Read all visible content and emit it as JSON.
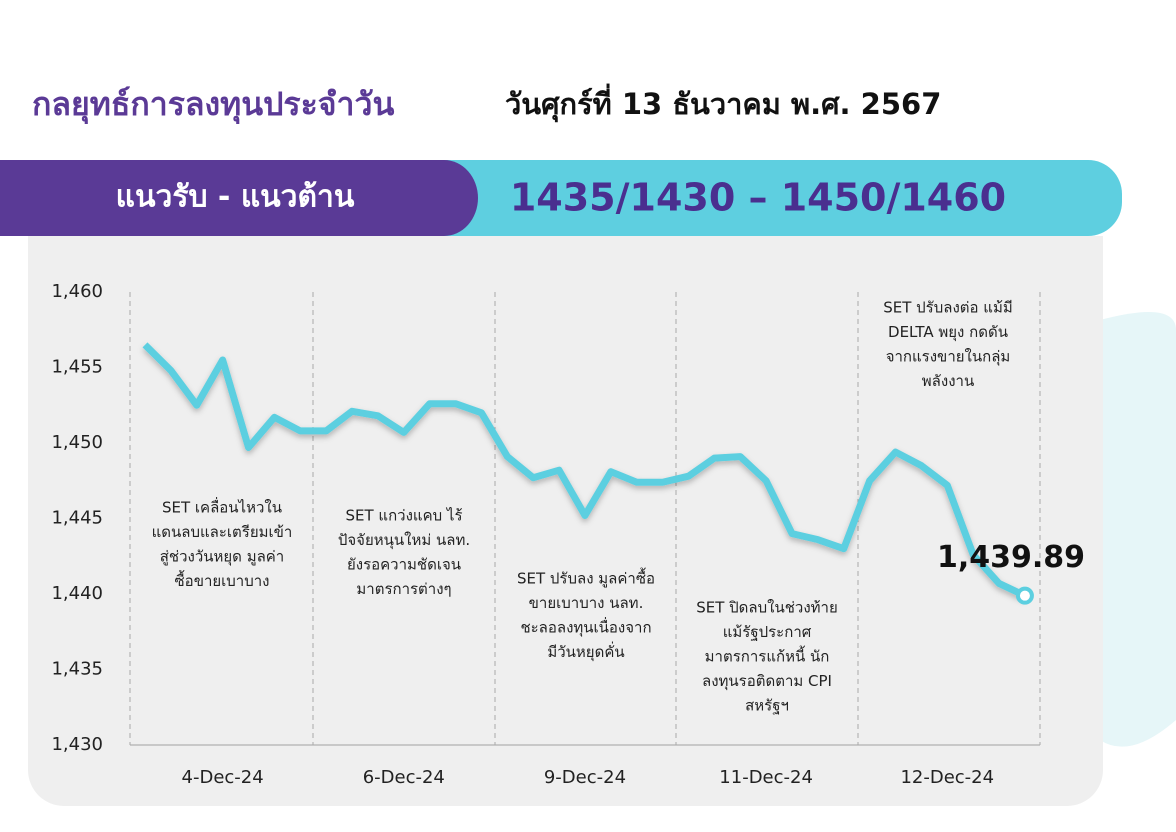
{
  "header": {
    "title": "กลยุทธ์การลงทุนประจำวัน",
    "date": "วันศุกร์ที่ 13 ธันวาคม พ.ศ. 2567",
    "banner_label": "แนวรับ - แนวต้าน",
    "banner_value": "1435/1430 – 1450/1460"
  },
  "chart_data": {
    "type": "line",
    "categories": [
      null,
      null,
      null,
      "4-Dec-24",
      null,
      null,
      null,
      null,
      null,
      null,
      "6-Dec-24",
      null,
      null,
      null,
      null,
      null,
      null,
      "9-Dec-24",
      null,
      null,
      null,
      null,
      null,
      null,
      "11-Dec-24",
      null,
      null,
      null,
      null,
      null,
      null,
      "12-Dec-24",
      null,
      null,
      null
    ],
    "series": [
      {
        "name": "SET",
        "color": "#5ccfe0",
        "values": [
          1456.5,
          1454.8,
          1452.5,
          1455.5,
          1449.7,
          1451.7,
          1450.8,
          1450.8,
          1452.1,
          1451.8,
          1450.7,
          1452.6,
          1452.6,
          1452.0,
          1449.1,
          1447.7,
          1448.2,
          1445.2,
          1448.1,
          1447.4,
          1447.4,
          1447.8,
          1449.0,
          1449.1,
          1447.5,
          1444.0,
          1443.6,
          1443.0,
          1447.5,
          1449.4,
          1448.5,
          1447.2,
          1442.6,
          1440.7,
          1439.89
        ],
        "value_labels": [
          null,
          null,
          null,
          null,
          null,
          null,
          null,
          null,
          null,
          null,
          null,
          null,
          null,
          null,
          null,
          null,
          null,
          null,
          null,
          null,
          null,
          null,
          null,
          null,
          null,
          null,
          null,
          null,
          null,
          null,
          null,
          null,
          null,
          null,
          "1,439.89"
        ]
      }
    ],
    "ylim": [
      1430,
      1460
    ],
    "yticks": [
      {
        "value": 1430,
        "label": "1,430"
      },
      {
        "value": 1435,
        "label": "1,435"
      },
      {
        "value": 1440,
        "label": "1,440"
      },
      {
        "value": 1445,
        "label": "1,445"
      },
      {
        "value": 1450,
        "label": "1,450"
      },
      {
        "value": 1455,
        "label": "1,455"
      },
      {
        "value": 1460,
        "label": "1,460"
      }
    ],
    "annotations": [
      [
        "SET เคลื่อนไหวใน",
        "แดนลบและเตรียมเข้า",
        "สู่ช่วงวันหยุด มูลค่า",
        "ซื้อขายเบาบาง"
      ],
      [
        "SET แกว่งแคบ ไร้",
        "ปัจจัยหนุนใหม่ นลท.",
        "ยังรอความชัดเจน",
        "มาตรการต่างๆ"
      ],
      [
        "SET ปรับลง มูลค่าซื้อ",
        "ขายเบาบาง นลท.",
        "ชะลอลงทุนเนื่องจาก",
        "มีวันหยุดคั่น"
      ],
      [
        "SET ปิดลบในช่วงท้าย",
        "แม้รัฐประกาศ",
        "มาตรการแก้หนี้ นัก",
        "ลงทุนรอติดตาม CPI",
        "สหรัฐฯ"
      ],
      [
        "SET ปรับลงต่อ แม้มี",
        "DELTA พยุง กดดัน",
        "จากแรงขายในกลุ่ม",
        "พลังงาน"
      ]
    ]
  }
}
